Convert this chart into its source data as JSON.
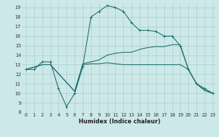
{
  "xlabel": "Humidex (Indice chaleur)",
  "bg_color": "#cce8e8",
  "grid_color": "#aacccc",
  "line_color": "#1a6e6e",
  "xlim": [
    -0.5,
    23.5
  ],
  "ylim": [
    8,
    19.5
  ],
  "xticks": [
    0,
    1,
    2,
    3,
    4,
    5,
    6,
    7,
    8,
    9,
    10,
    11,
    12,
    13,
    14,
    15,
    16,
    17,
    18,
    19,
    20,
    21,
    22,
    23
  ],
  "yticks": [
    8,
    9,
    10,
    11,
    12,
    13,
    14,
    15,
    16,
    17,
    18,
    19
  ],
  "line1_x": [
    0,
    1,
    2,
    3,
    4,
    5,
    6,
    7,
    8,
    9,
    10,
    11,
    12,
    13,
    14,
    15,
    16,
    17,
    18,
    19,
    20,
    21,
    22,
    23
  ],
  "line1_y": [
    12.5,
    12.5,
    13.3,
    13.3,
    10.5,
    8.6,
    10.0,
    12.8,
    18.0,
    18.6,
    19.2,
    19.0,
    18.6,
    17.4,
    16.6,
    16.6,
    16.5,
    16.0,
    16.0,
    15.0,
    12.5,
    11.0,
    10.5,
    10.0
  ],
  "line2_x": [
    0,
    2,
    3,
    6,
    7,
    8,
    9,
    10,
    11,
    12,
    13,
    14,
    15,
    16,
    17,
    18,
    19,
    20,
    21,
    22,
    23
  ],
  "line2_y": [
    12.5,
    13.0,
    13.0,
    10.2,
    13.1,
    13.3,
    13.5,
    14.0,
    14.2,
    14.3,
    14.3,
    14.6,
    14.8,
    14.9,
    14.9,
    15.1,
    15.1,
    12.5,
    11.0,
    10.3,
    10.0
  ],
  "line3_x": [
    0,
    2,
    3,
    6,
    7,
    8,
    9,
    10,
    11,
    12,
    13,
    14,
    15,
    16,
    17,
    18,
    19,
    20,
    21,
    22,
    23
  ],
  "line3_y": [
    12.5,
    13.0,
    13.0,
    10.2,
    13.0,
    13.1,
    13.1,
    13.2,
    13.1,
    13.0,
    13.0,
    13.0,
    13.0,
    13.0,
    13.0,
    13.0,
    13.0,
    12.5,
    11.0,
    10.3,
    10.0
  ],
  "markersize": 3.5,
  "linewidth": 0.8,
  "tick_fontsize": 5.0,
  "xlabel_fontsize": 6.0
}
